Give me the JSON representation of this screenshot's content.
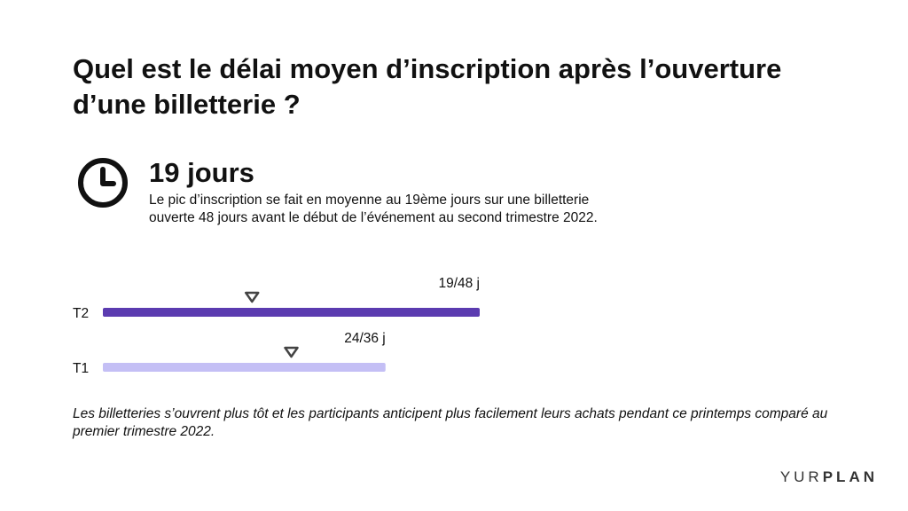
{
  "title": "Quel est le délai moyen d’inscription après l’ouverture d’une billetterie ?",
  "stat": {
    "icon": "clock-icon",
    "value": "19 jours",
    "description": "Le pic d’inscription se fait en moyenne au 19ème jours sur une billetterie ouverte 48 jours avant le début de l’événement au second trimestre 2022."
  },
  "chart_data": {
    "type": "bar",
    "orientation": "horizontal",
    "unit": "jours",
    "categories": [
      "T2",
      "T1"
    ],
    "series": [
      {
        "category": "T2",
        "peak": 19,
        "total": 48,
        "label": "19/48 j",
        "color": "#5b3bb0"
      },
      {
        "category": "T1",
        "peak": 24,
        "total": 36,
        "label": "24/36 j",
        "color": "#c4bff5"
      }
    ]
  },
  "footnote": "Les billetteries s’ouvrent plus tôt et les participants anticipent plus facilement leurs achats pendant ce printemps comparé au premier trimestre 2022.",
  "brand": {
    "part1": "YUR",
    "part2": "PLAN"
  }
}
